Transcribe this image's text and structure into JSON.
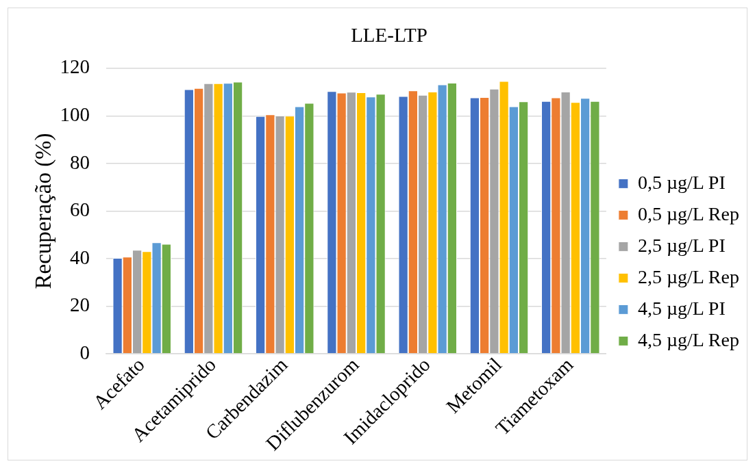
{
  "chart_data": {
    "type": "bar",
    "title": "LLE-LTP",
    "ylabel": "Recuperação (%)",
    "categories": [
      "Acefato",
      "Acetamiprido",
      "Carbendazim",
      "Diflubenzurom",
      "Imidacloprido",
      "Metomil",
      "Tiametoxam"
    ],
    "series": [
      {
        "name": "0,5 µg/L PI",
        "color": "#4472c4",
        "values": [
          40.3,
          111.2,
          99.9,
          110.4,
          108.3,
          107.7,
          106.2
        ]
      },
      {
        "name": "0,5 µg/L Rep",
        "color": "#ed7d31",
        "values": [
          40.8,
          111.7,
          100.6,
          109.7,
          110.7,
          107.9,
          107.7
        ]
      },
      {
        "name": "2,5 µg/L PI",
        "color": "#a5a5a5",
        "values": [
          43.7,
          113.7,
          100.1,
          110.1,
          108.8,
          111.4,
          110.2
        ]
      },
      {
        "name": "2,5 µg/L Rep",
        "color": "#ffc000",
        "values": [
          43.1,
          113.7,
          100.0,
          109.9,
          110.2,
          114.6,
          105.8
        ]
      },
      {
        "name": "4,5 µg/L PI",
        "color": "#5b9bd5",
        "values": [
          46.8,
          113.8,
          104.0,
          108.1,
          113.2,
          104.0,
          107.5
        ]
      },
      {
        "name": "4,5 µg/L Rep",
        "color": "#70ad47",
        "values": [
          46.2,
          114.3,
          105.4,
          109.2,
          113.9,
          106.1,
          106.2
        ]
      }
    ],
    "ylim": [
      0,
      120
    ],
    "yticks": [
      0,
      20,
      40,
      60,
      80,
      100,
      120
    ],
    "grid": "y",
    "legend": "right"
  }
}
